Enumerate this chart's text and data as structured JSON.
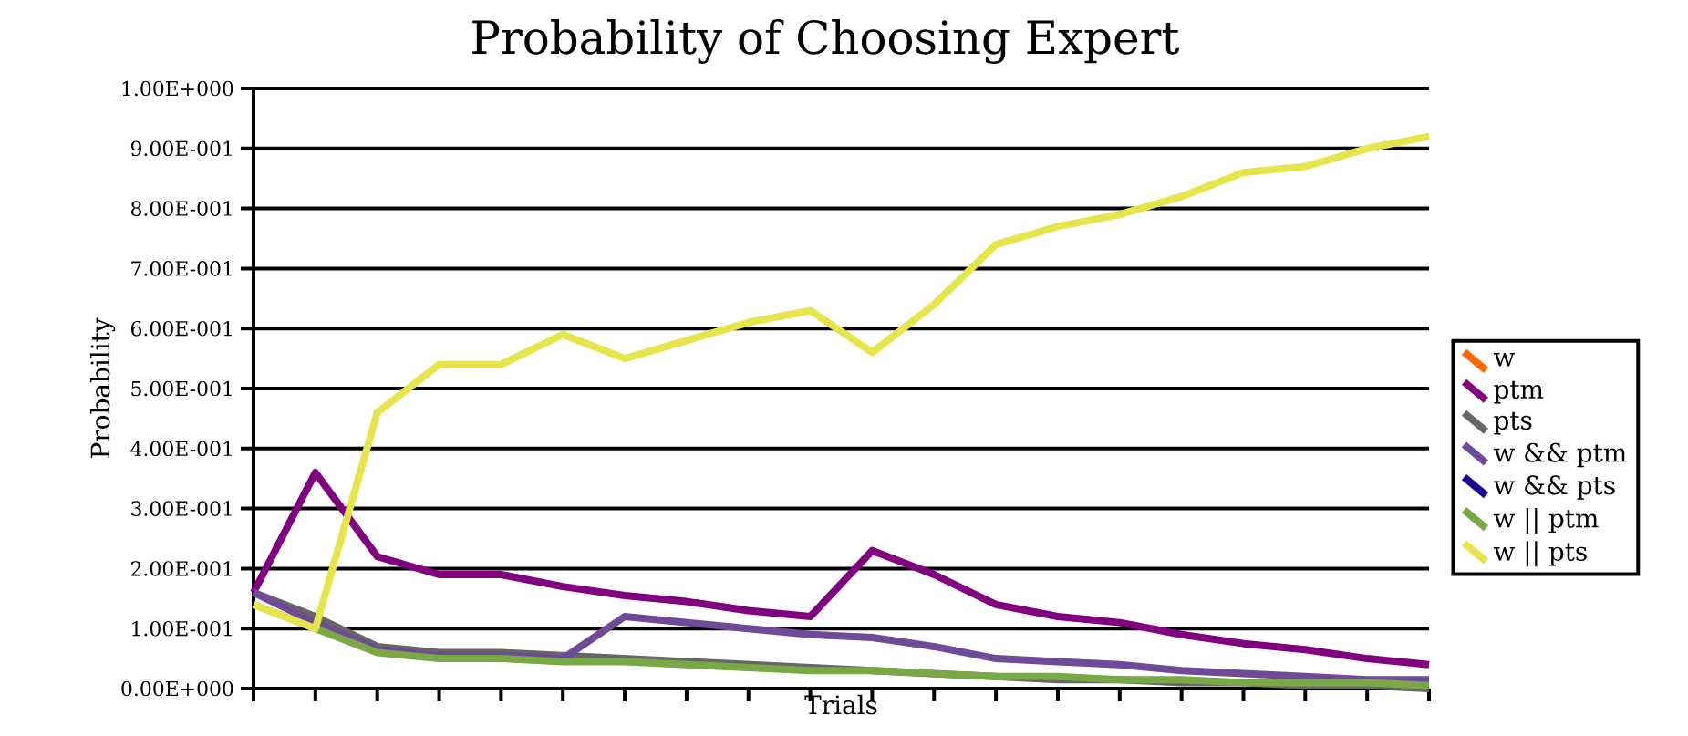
{
  "chart_data": {
    "type": "line",
    "title": "Probability of Choosing Expert",
    "xlabel": "Trials",
    "ylabel": "Probability",
    "categories": [
      null,
      null,
      null,
      null,
      null,
      null,
      null,
      null,
      null,
      null,
      null,
      null,
      null,
      null,
      null,
      null,
      null,
      null,
      null,
      null
    ],
    "series": [
      {
        "name": "w",
        "color": "#ff6600",
        "values": [
          null,
          null,
          null,
          null,
          null,
          null,
          null,
          null,
          null,
          null,
          null,
          null,
          null,
          null,
          null,
          null,
          null,
          null,
          null,
          null
        ]
      },
      {
        "name": "ptm",
        "color": "#800080",
        "values": [
          0.16,
          0.36,
          0.22,
          0.19,
          0.19,
          0.17,
          0.155,
          0.145,
          0.13,
          0.12,
          0.23,
          0.19,
          0.14,
          0.12,
          0.11,
          0.09,
          0.075,
          0.065,
          0.05,
          0.04
        ]
      },
      {
        "name": "pts",
        "color": "#666666",
        "values": [
          0.16,
          0.12,
          0.07,
          0.06,
          0.06,
          0.055,
          0.05,
          0.045,
          0.04,
          0.035,
          0.03,
          0.025,
          0.02,
          0.015,
          0.015,
          0.01,
          0.01,
          0.005,
          0.005,
          0.0
        ]
      },
      {
        "name": "w && ptm",
        "color": "#6f4a96",
        "values": [
          0.16,
          0.11,
          0.065,
          0.055,
          0.055,
          0.05,
          0.12,
          0.11,
          0.1,
          0.09,
          0.085,
          0.07,
          0.05,
          0.045,
          0.04,
          0.03,
          0.025,
          0.02,
          0.015,
          0.015
        ]
      },
      {
        "name": "w && pts",
        "color": "#1a0099",
        "values": [
          null,
          null,
          null,
          null,
          null,
          null,
          null,
          null,
          null,
          null,
          null,
          null,
          null,
          null,
          null,
          null,
          null,
          null,
          null,
          null
        ]
      },
      {
        "name": "w || ptm",
        "color": "#7aa846",
        "values": [
          0.14,
          0.1,
          0.06,
          0.05,
          0.05,
          0.045,
          0.045,
          0.04,
          0.035,
          0.03,
          0.03,
          0.025,
          0.02,
          0.02,
          0.015,
          0.015,
          0.01,
          0.01,
          0.01,
          0.005
        ]
      },
      {
        "name": "w || pts",
        "color": "#e6e64c",
        "values": [
          0.14,
          0.1,
          0.46,
          0.54,
          0.54,
          0.59,
          0.55,
          0.58,
          0.61,
          0.63,
          0.56,
          0.64,
          0.74,
          0.77,
          0.79,
          0.82,
          0.86,
          0.87,
          0.9,
          0.92
        ]
      }
    ],
    "ylim": [
      0,
      1
    ],
    "yticks": [
      {
        "value": 0,
        "label": "0.00E+000"
      },
      {
        "value": 0.1,
        "label": "1.00E-001"
      },
      {
        "value": 0.2,
        "label": "2.00E-001"
      },
      {
        "value": 0.3,
        "label": "3.00E-001"
      },
      {
        "value": 0.4,
        "label": "4.00E-001"
      },
      {
        "value": 0.5,
        "label": "5.00E-001"
      },
      {
        "value": 0.6,
        "label": "6.00E-001"
      },
      {
        "value": 0.7,
        "label": "7.00E-001"
      },
      {
        "value": 0.8,
        "label": "8.00E-001"
      },
      {
        "value": 0.9,
        "label": "9.00E-001"
      },
      {
        "value": 1,
        "label": "1.00E+000"
      }
    ],
    "grid": "y",
    "legend": "right",
    "tick_labels": "y"
  }
}
